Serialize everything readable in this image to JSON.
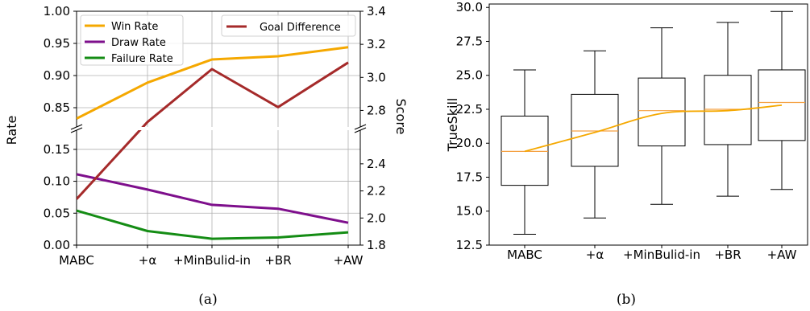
{
  "colors": {
    "win": "#F5A800",
    "draw": "#7E0F8C",
    "failure": "#148C14",
    "goal": "#A52A2A",
    "median": "#F5A040",
    "trend": "#F5A800"
  },
  "captions": {
    "a": "(a)",
    "b": "(b)"
  },
  "chart_data": [
    {
      "type": "line",
      "categories": [
        "MABC",
        "+α",
        "+MinBulid-in",
        "+BR",
        "+AW"
      ],
      "ylabel": "Rate",
      "y2label": "Score",
      "y_upper_lim": [
        0.82,
        1.0
      ],
      "y_lower_lim": [
        0.0,
        0.18
      ],
      "y_upper_ticks": [
        "0.85",
        "0.90",
        "0.95",
        "1.00"
      ],
      "y_lower_ticks": [
        "0.00",
        "0.05",
        "0.10",
        "0.15"
      ],
      "y2lim": [
        1.8,
        3.4
      ],
      "y2_ticks": [
        "1.8",
        "2.0",
        "2.2",
        "2.4",
        "2.8",
        "3.0",
        "3.2",
        "3.4"
      ],
      "y2_break": [
        2.5,
        2.7
      ],
      "grid": true,
      "legend_left": "top-left",
      "legend_right": "top-right",
      "series": [
        {
          "name": "Win Rate",
          "axis": "left",
          "values": [
            0.833,
            0.889,
            0.925,
            0.93,
            0.944
          ]
        },
        {
          "name": "Draw Rate",
          "axis": "left",
          "values": [
            0.111,
            0.087,
            0.063,
            0.057,
            0.035
          ]
        },
        {
          "name": "Failure Rate",
          "axis": "left",
          "values": [
            0.054,
            0.022,
            0.01,
            0.012,
            0.02
          ]
        },
        {
          "name": "Goal Difference",
          "axis": "right",
          "values": [
            2.14,
            2.73,
            3.05,
            2.82,
            3.09
          ]
        }
      ]
    },
    {
      "type": "box",
      "categories": [
        "MABC",
        "+α",
        "+MinBulid-in",
        "+BR",
        "+AW"
      ],
      "ylabel": "TrueSkill",
      "ylim": [
        12.5,
        30.25
      ],
      "y_ticks": [
        "12.5",
        "15.0",
        "17.5",
        "20.0",
        "22.5",
        "25.0",
        "27.5",
        "30.0"
      ],
      "grid": false,
      "boxes": [
        {
          "whisker_low": 13.3,
          "q1": 16.9,
          "median": 19.4,
          "q3": 22.0,
          "whisker_high": 25.4
        },
        {
          "whisker_low": 14.5,
          "q1": 18.3,
          "median": 20.9,
          "q3": 23.6,
          "whisker_high": 26.8
        },
        {
          "whisker_low": 15.5,
          "q1": 19.8,
          "median": 22.4,
          "q3": 24.8,
          "whisker_high": 28.5
        },
        {
          "whisker_low": 16.1,
          "q1": 19.9,
          "median": 22.5,
          "q3": 25.0,
          "whisker_high": 28.9
        },
        {
          "whisker_low": 16.6,
          "q1": 20.2,
          "median": 23.0,
          "q3": 25.4,
          "whisker_high": 29.7
        }
      ],
      "trend": [
        19.4,
        20.8,
        22.2,
        22.4,
        22.8
      ]
    }
  ]
}
